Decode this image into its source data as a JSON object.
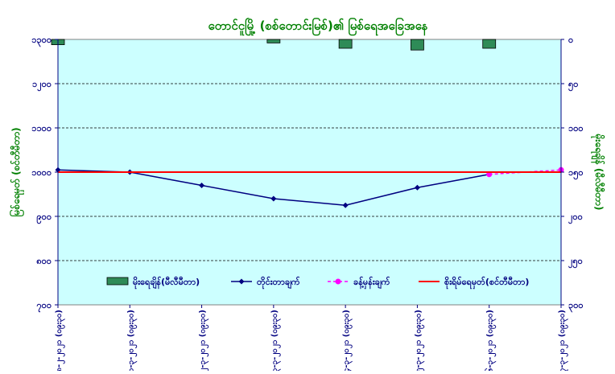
{
  "chart_data": {
    "type": "line",
    "title": "တောင်ငူမြို့ (စစ်တောင်းမြစ်)၏ မြစ်ရေအခြေအနေ",
    "ylabel_left": "မြစ်ရေမှတ် (စင်တီမီတာ)",
    "ylabel_right": "မိုးရေချိန် (မီလီမီတာ)",
    "ylim_left": [
      700,
      1300
    ],
    "ylim_right": [
      0,
      300
    ],
    "y_ticks_left": [
      "၁၃၀၀",
      "၁၂၀၀",
      "၁၁၀၀",
      "၁၀၀၀",
      "၉၀၀",
      "၈၀၀",
      "၇၀၀"
    ],
    "y_ticks_right": [
      "၀",
      "၅၀",
      "၁၀၀",
      "၁၅၀",
      "၂၀၀",
      "၂၅၀",
      "၃၀၀"
    ],
    "categories": [
      "၂၈-၂-၂၀၂၁ (၀၉း၃၀)",
      "၁-၃-၂၀၂၁ (၀၉း၃၀)",
      "၂-၃-၂၀၂၁ (၀၉း၃၀)",
      "၃-၃-၂၀၂၁ (၀၉း၃၀)",
      "၄-၃-၂၀၂၁ (၀၉း၃၀)",
      "၅-၃-၂၀၂၁ (၀၉း၃၀)",
      "၆-၃-၂၀၂၁ (၀၉း၃၀)",
      "၇-၃-၂၀၂၁ (၀၉း၃၀)"
    ],
    "series": [
      {
        "name": "မိုးရေချိန်(မီလီမီတာ)",
        "kind": "bar",
        "axis": "right",
        "color": "#2e8b57",
        "values": [
          6,
          0,
          0,
          4,
          10,
          12,
          10,
          0
        ]
      },
      {
        "name": "တိုင်းတာချက်",
        "kind": "line",
        "axis": "left",
        "color": "#000080",
        "values": [
          1005,
          1000,
          970,
          940,
          925,
          965,
          995,
          null
        ]
      },
      {
        "name": "ခန့်မှန်းချက်",
        "kind": "line-dashed",
        "axis": "left",
        "color": "#ff00ff",
        "values": [
          null,
          null,
          null,
          null,
          null,
          null,
          995,
          1005
        ]
      },
      {
        "name": "စိုးရိမ်ရေမှတ်(စင်တီမီတာ)",
        "kind": "hline",
        "axis": "left",
        "color": "#ff0000",
        "values": [
          1000,
          1000,
          1000,
          1000,
          1000,
          1000,
          1000,
          1000
        ]
      }
    ],
    "legend_position": "bottom-inside",
    "grid": "dashed-horizontal"
  },
  "colors": {
    "plot_background": "#ccffff",
    "axis_text": "#000080",
    "title_text": "#008000",
    "axis_title_text": "#008000"
  }
}
